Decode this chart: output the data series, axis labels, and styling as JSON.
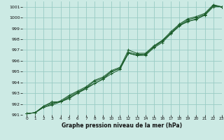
{
  "xlabel": "Graphe pression niveau de la mer (hPa)",
  "xlim": [
    -0.5,
    23
  ],
  "ylim": [
    991,
    1001.5
  ],
  "yticks": [
    991,
    992,
    993,
    994,
    995,
    996,
    997,
    998,
    999,
    1000,
    1001
  ],
  "xticks": [
    0,
    1,
    2,
    3,
    4,
    5,
    6,
    7,
    8,
    9,
    10,
    11,
    12,
    13,
    14,
    15,
    16,
    17,
    18,
    19,
    20,
    21,
    22,
    23
  ],
  "bg_color": "#cceae4",
  "grid_color": "#99ccc4",
  "line_color": "#1a5c2a",
  "series": [
    [
      991.1,
      991.2,
      991.7,
      991.9,
      992.2,
      992.6,
      993.0,
      993.4,
      993.9,
      994.3,
      994.8,
      995.2,
      996.7,
      996.5,
      996.6,
      997.3,
      997.9,
      998.5,
      999.2,
      999.7,
      999.8,
      1000.3,
      1001.1,
      1001.0
    ],
    [
      991.1,
      991.2,
      991.8,
      992.2,
      992.2,
      992.5,
      993.0,
      993.5,
      993.9,
      994.3,
      995.0,
      995.3,
      996.7,
      996.5,
      996.5,
      997.2,
      997.7,
      998.5,
      999.3,
      999.6,
      999.9,
      1000.2,
      1001.0,
      1001.0
    ],
    [
      991.1,
      991.2,
      991.8,
      992.1,
      992.2,
      992.7,
      993.1,
      993.5,
      994.1,
      994.4,
      995.0,
      995.3,
      996.8,
      996.6,
      996.6,
      997.3,
      997.8,
      998.6,
      999.3,
      999.8,
      1000.0,
      1000.3,
      1001.1,
      1001.0
    ],
    [
      991.1,
      991.2,
      991.7,
      992.0,
      992.3,
      992.8,
      993.2,
      993.6,
      994.2,
      994.5,
      995.1,
      995.4,
      997.0,
      996.7,
      996.7,
      997.4,
      997.9,
      998.7,
      999.4,
      999.9,
      1000.1,
      1000.4,
      1001.2,
      1001.0
    ]
  ]
}
